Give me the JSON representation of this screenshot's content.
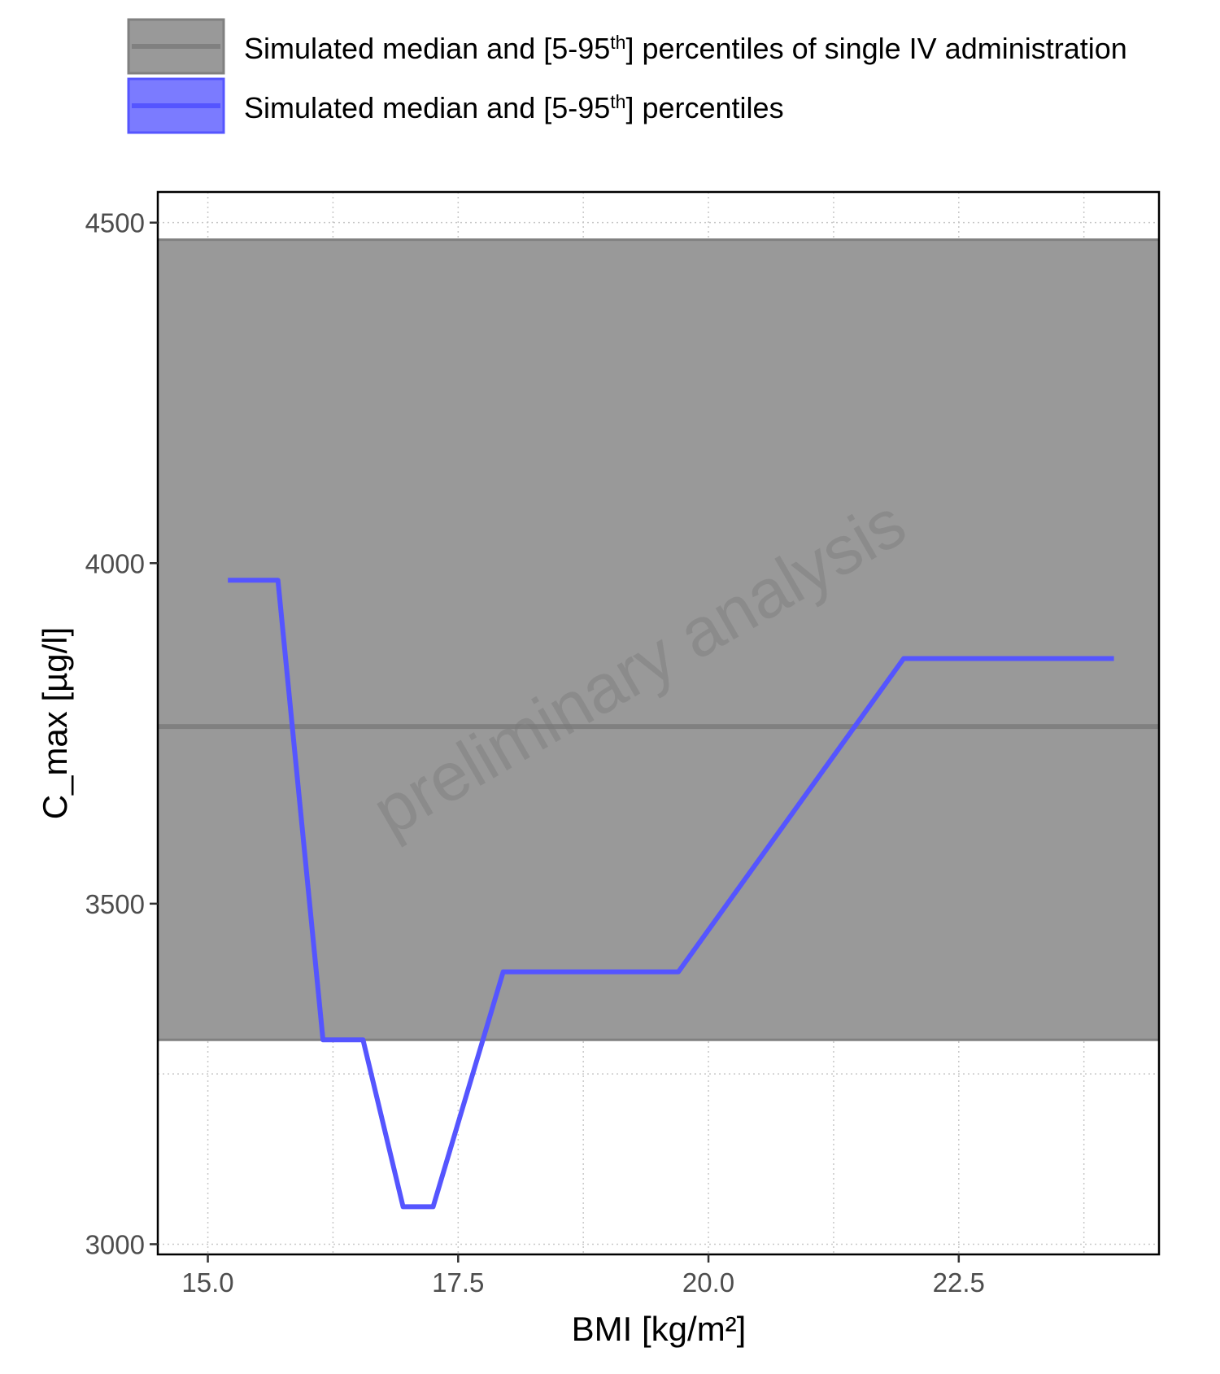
{
  "chart_data": {
    "type": "line",
    "xlabel": "BMI [kg/m²]",
    "ylabel": "C_max [µg/l]",
    "xlim": [
      14.5,
      24.5
    ],
    "ylim": [
      2985,
      4545
    ],
    "x_ticks": [
      15.0,
      17.5,
      20.0,
      22.5
    ],
    "x_tick_labels": [
      "15.0",
      "17.5",
      "20.0",
      "22.5"
    ],
    "y_ticks": [
      3000,
      3500,
      4000,
      4500
    ],
    "y_tick_labels": [
      "3000",
      "3500",
      "4000",
      "4500"
    ],
    "grid": true,
    "watermark": "preliminary analysis",
    "legend": {
      "position": "top",
      "entries": [
        {
          "text_before": "Simulated median and [5-95",
          "superscript": "th",
          "text_after": "] percentiles of single IV administration",
          "color": "#808080"
        },
        {
          "text_before": "Simulated median and [5-95",
          "superscript": "th",
          "text_after": "] percentiles",
          "color": "#5555ff"
        }
      ]
    },
    "reference_band": {
      "median": 3760,
      "p5": 3300,
      "p95": 4475,
      "fill_color": "#999999",
      "line_color": "#808080"
    },
    "series": [
      {
        "color": "#5555ff",
        "x": [
          15.2,
          15.7,
          16.15,
          16.55,
          16.95,
          17.25,
          17.95,
          19.7,
          21.95,
          24.05
        ],
        "y": [
          3975,
          3975,
          3300,
          3300,
          3055,
          3055,
          3400,
          3400,
          3860,
          3860
        ]
      }
    ]
  }
}
